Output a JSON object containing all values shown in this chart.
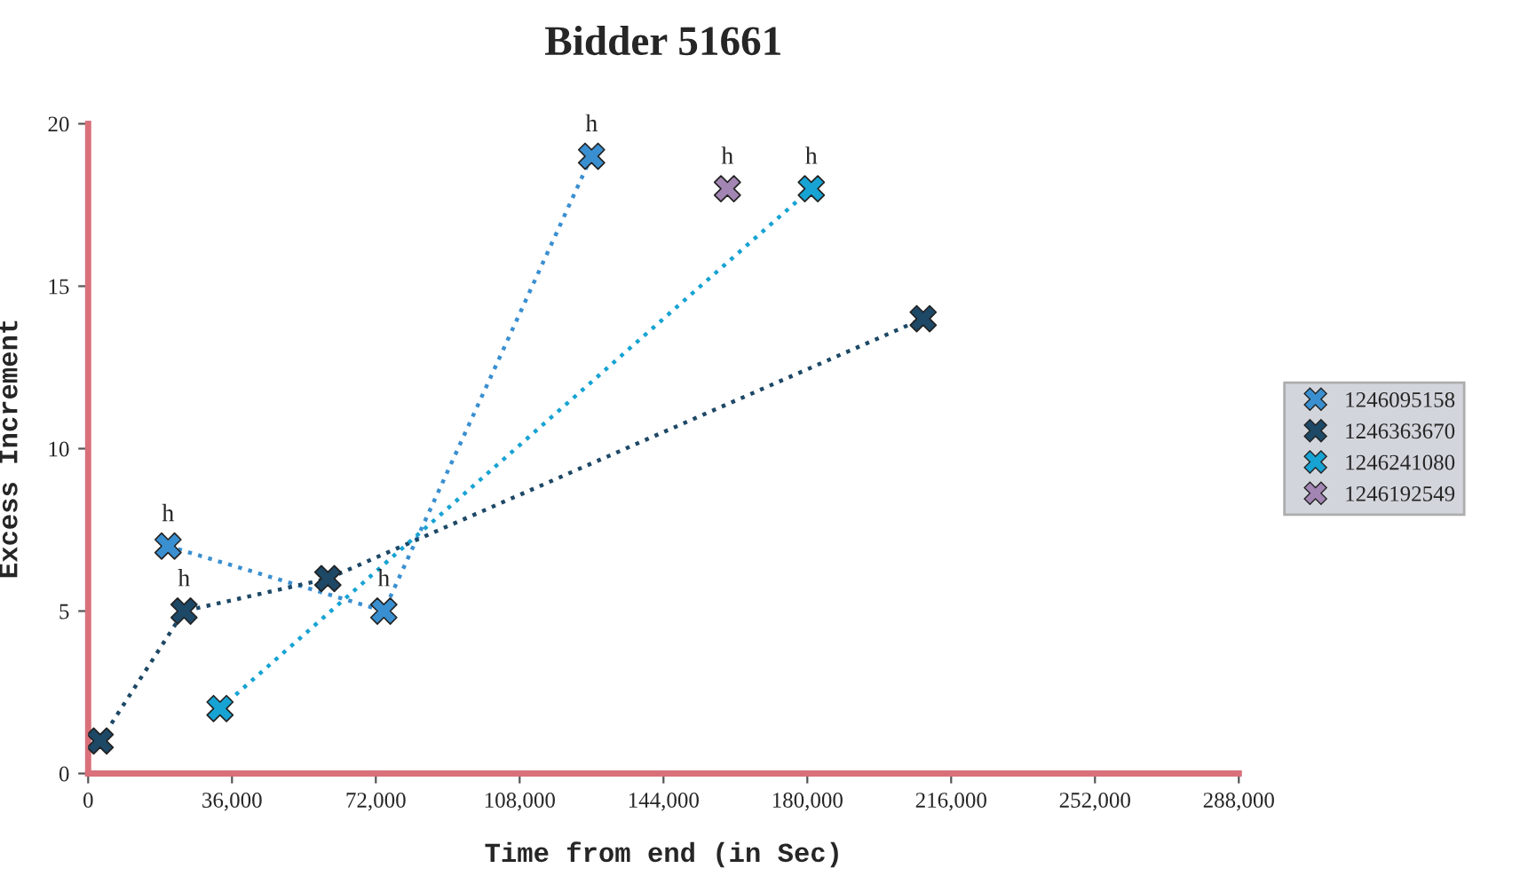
{
  "chart_data": {
    "type": "line",
    "title": "Bidder 51661",
    "xlabel": "Time from end (in Sec)",
    "ylabel": "Excess Increment",
    "series": [
      {
        "name": "1246095158",
        "color": "#3a8fd0",
        "x": [
          20000,
          74000,
          126000
        ],
        "values": [
          7,
          5,
          19
        ]
      },
      {
        "name": "1246363670",
        "color": "#1d4866",
        "x": [
          3000,
          24000,
          60000,
          209000
        ],
        "values": [
          1,
          5,
          6,
          14
        ]
      },
      {
        "name": "1246241080",
        "color": "#17a3d3",
        "x": [
          33000,
          181000
        ],
        "values": [
          2,
          18
        ]
      },
      {
        "name": "1246192549",
        "color": "#a385b3",
        "x": [
          160000
        ],
        "values": [
          18
        ]
      }
    ],
    "annotations": [
      {
        "text": "h",
        "x": 20000,
        "y": 7
      },
      {
        "text": "h",
        "x": 74000,
        "y": 5
      },
      {
        "text": "h",
        "x": 126000,
        "y": 19
      },
      {
        "text": "h",
        "x": 24000,
        "y": 5
      },
      {
        "text": "h",
        "x": 181000,
        "y": 18
      },
      {
        "text": "h",
        "x": 160000,
        "y": 18
      }
    ],
    "xlim": [
      0,
      288000
    ],
    "ylim": [
      0,
      20
    ],
    "xticks": [
      0,
      {
        "value": 36000,
        "label": "36,000"
      },
      {
        "value": 72000,
        "label": "72,000"
      },
      {
        "value": 108000,
        "label": "108,000"
      },
      {
        "value": 144000,
        "label": "144,000"
      },
      {
        "value": 180000,
        "label": "180,000"
      },
      {
        "value": 216000,
        "label": "216,000"
      },
      {
        "value": 252000,
        "label": "252,000"
      },
      {
        "value": 288000,
        "label": "288,000"
      }
    ],
    "yticks": [
      0,
      5,
      10,
      15,
      20
    ],
    "grid": false,
    "legend": "right",
    "marker": "cross",
    "line_style": "dotted"
  }
}
